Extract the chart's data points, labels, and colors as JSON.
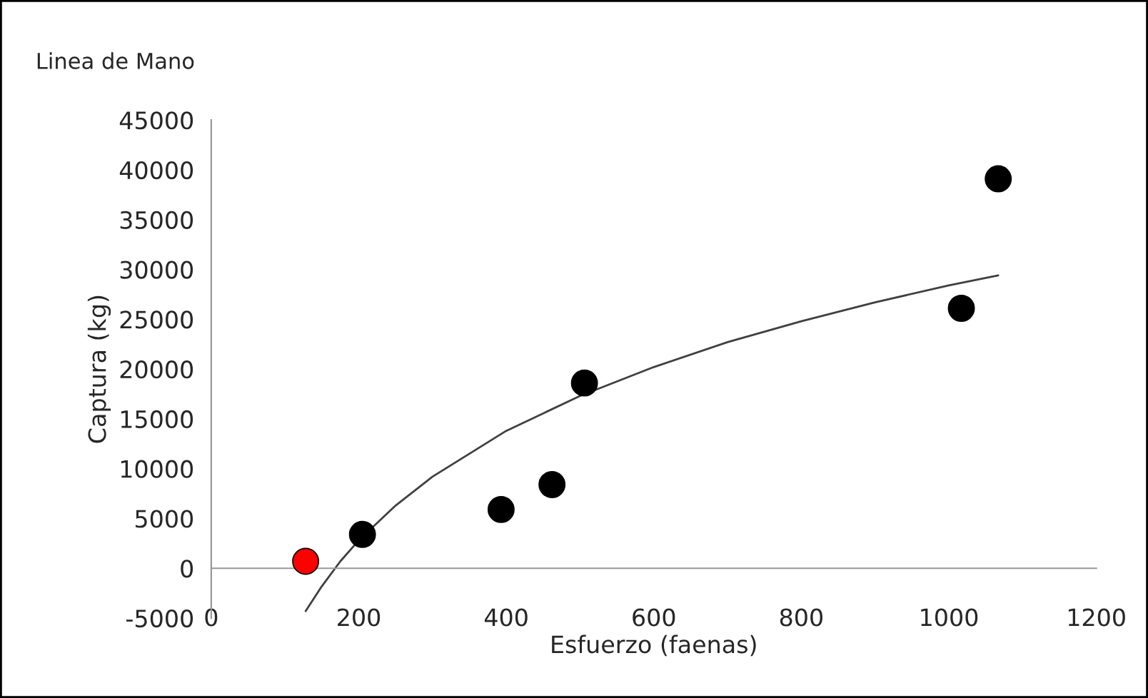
{
  "chart_data": {
    "type": "scatter",
    "title": "Linea de Mano",
    "xlabel": "Esfuerzo (faenas)",
    "ylabel": "Captura (kg)",
    "xlim": [
      0,
      1200
    ],
    "xticks": [
      0,
      200,
      400,
      600,
      800,
      1000,
      1200
    ],
    "ylim": [
      -5000,
      45000
    ],
    "yticks": [
      -5000,
      0,
      5000,
      10000,
      15000,
      20000,
      25000,
      30000,
      35000,
      40000,
      45000
    ],
    "series": [
      {
        "marker": "circle",
        "x": [
          128,
          205,
          393,
          462,
          506,
          1017,
          1067
        ],
        "values": [
          700,
          3400,
          5900,
          8400,
          18600,
          26100,
          39100
        ],
        "colors": [
          "#ff0000",
          "#000000",
          "#000000",
          "#000000",
          "#000000",
          "#000000",
          "#000000"
        ]
      },
      {
        "type": "line",
        "marker": "none",
        "color": "#404040",
        "line_style": "solid",
        "x": [
          128,
          150,
          175,
          200,
          250,
          300,
          400,
          500,
          600,
          700,
          800,
          900,
          1000,
          1067
        ],
        "values": [
          -4300,
          -1800,
          700,
          2800,
          6300,
          9200,
          13800,
          17300,
          20200,
          22700,
          24800,
          26700,
          28400,
          29400
        ]
      }
    ]
  }
}
